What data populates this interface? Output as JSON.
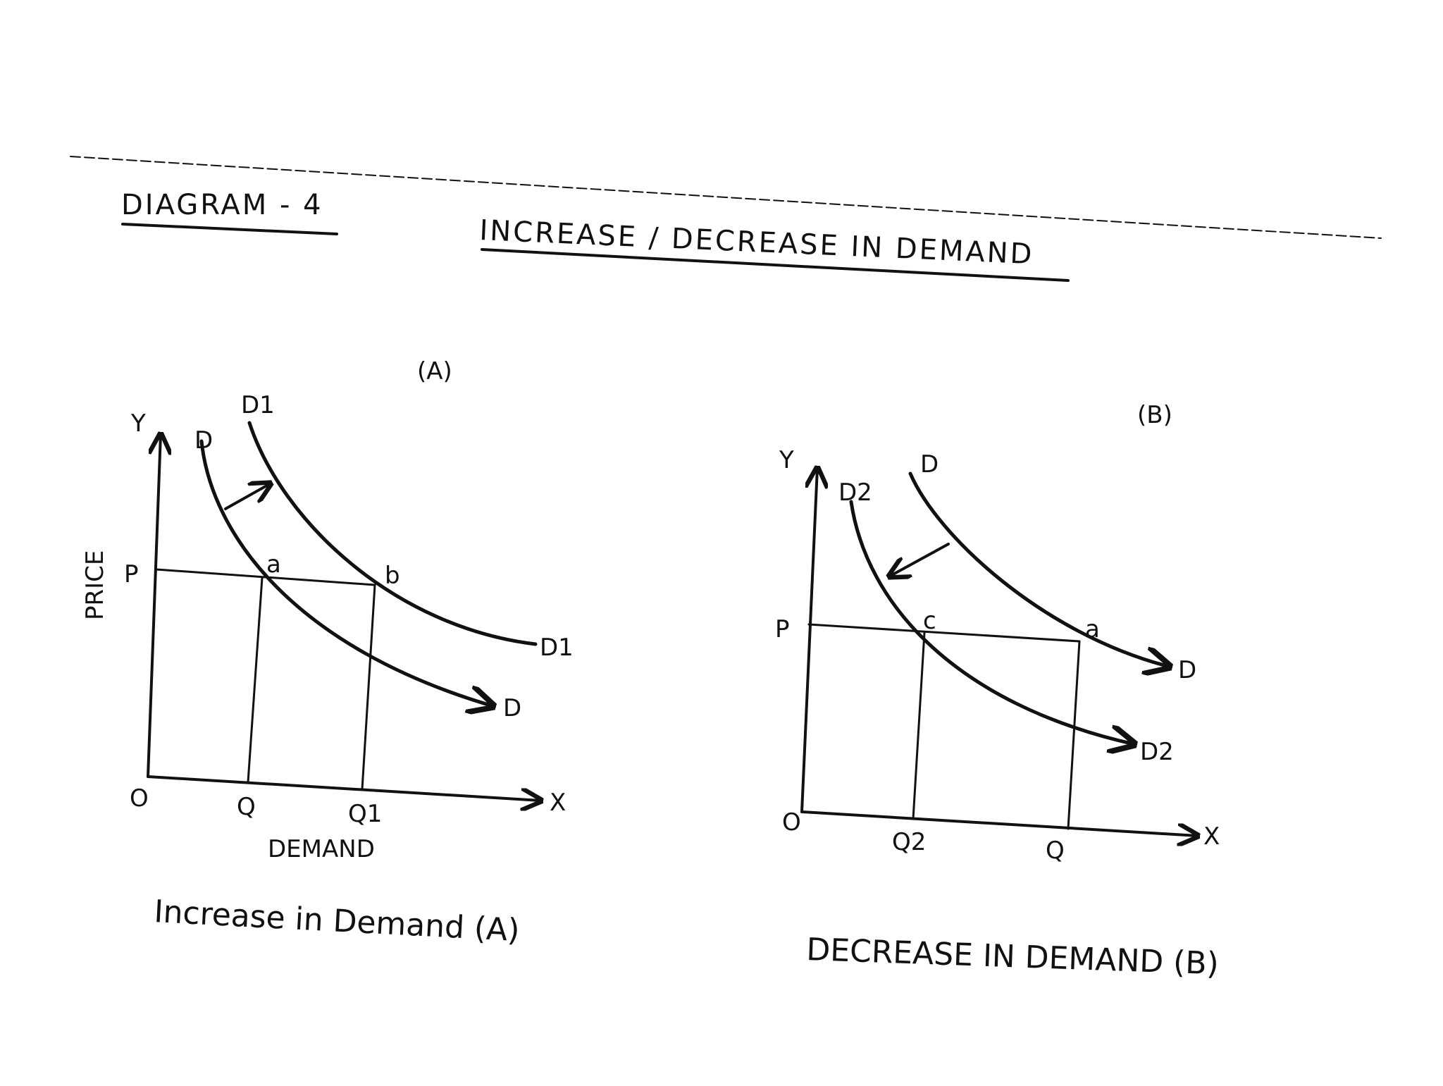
{
  "header": {
    "diagram_label": "DIAGRAM - 4",
    "title": "INCREASE / DECREASE IN DEMAND"
  },
  "panel_a": {
    "panel_label": "(A)",
    "y_axis": "Y",
    "x_axis": "X",
    "origin": "O",
    "price_axis_label": "PRICE",
    "price_level": "P",
    "quantity_levels": [
      "Q",
      "Q1"
    ],
    "x_axis_label": "DEMAND",
    "curves": [
      {
        "name_top": "D",
        "name_end": "D"
      },
      {
        "name_top": "D1",
        "name_end": "D1"
      }
    ],
    "points": [
      "a",
      "b"
    ],
    "caption": "Increase in Demand (A)"
  },
  "panel_b": {
    "panel_label": "(B)",
    "y_axis": "Y",
    "x_axis": "X",
    "origin": "O",
    "price_level": "P",
    "quantity_levels": [
      "Q2",
      "Q"
    ],
    "curves": [
      {
        "name_top": "D",
        "name_end": "D"
      },
      {
        "name_top": "D2",
        "name_end": "D2"
      }
    ],
    "points": [
      "c",
      "a"
    ],
    "caption": "DECREASE IN DEMAND (B)"
  },
  "colors": {
    "ink": "#111111",
    "paper": "#ffffff"
  }
}
